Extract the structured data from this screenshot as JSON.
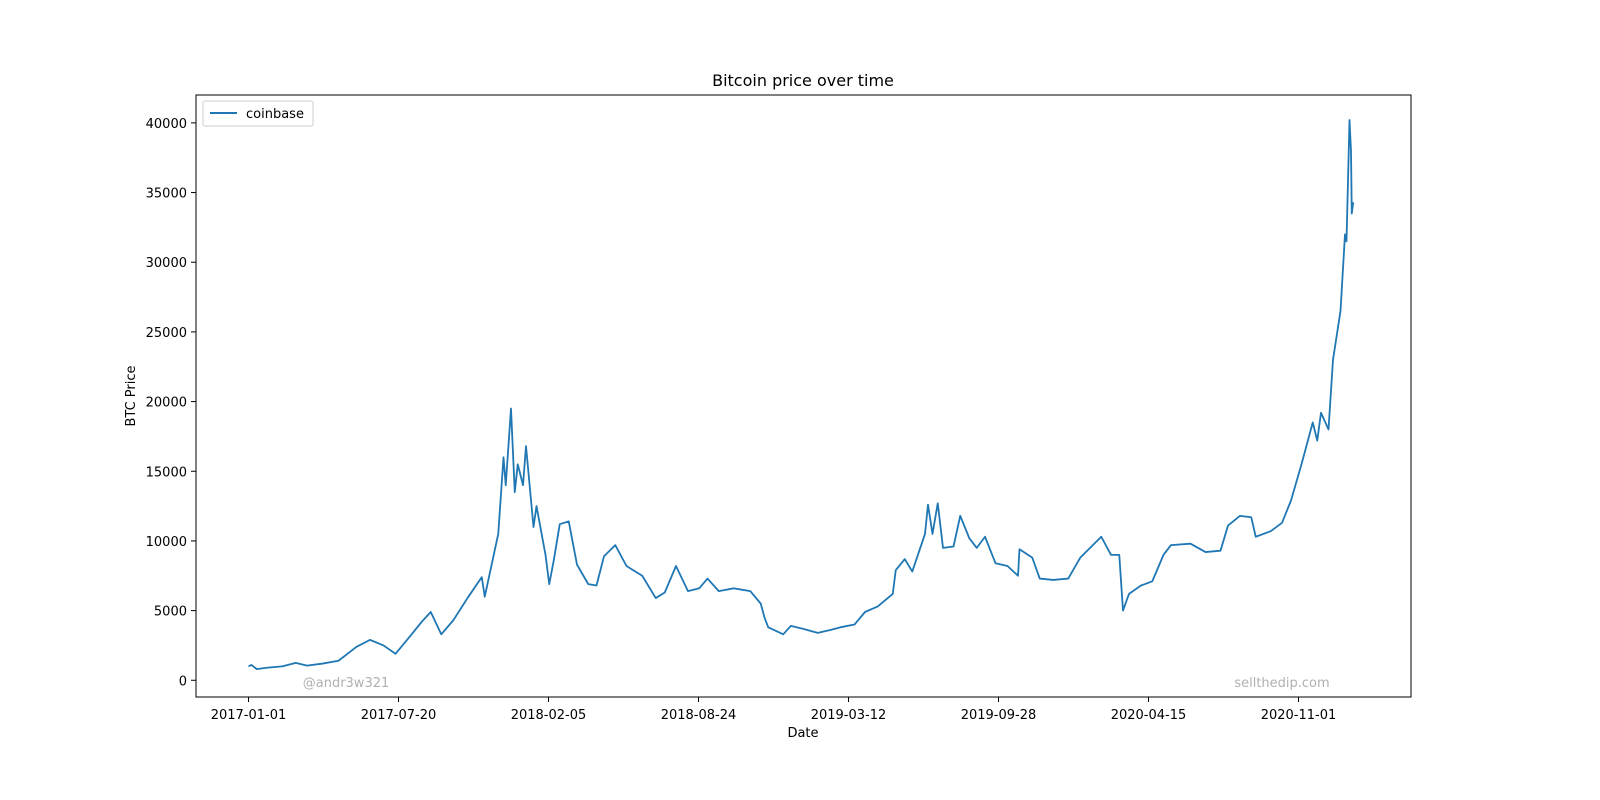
{
  "chart_data": {
    "type": "line",
    "title": "Bitcoin price over time",
    "xlabel": "Date",
    "ylabel": "BTC Price",
    "grid": false,
    "legend_position": "top-left",
    "ylim": [
      -1200,
      42000
    ],
    "xlim": [
      "2016-10-23",
      "2021-03-31"
    ],
    "y_ticks": [
      0,
      5000,
      10000,
      15000,
      20000,
      25000,
      30000,
      35000,
      40000
    ],
    "x_ticks": [
      "2017-01-01",
      "2017-07-20",
      "2018-02-05",
      "2018-08-24",
      "2019-03-12",
      "2019-09-28",
      "2020-04-15",
      "2020-11-01"
    ],
    "series": [
      {
        "name": "coinbase",
        "color": "#1f77b4",
        "points": [
          [
            "2017-01-01",
            1000
          ],
          [
            "2017-01-05",
            1100
          ],
          [
            "2017-01-12",
            800
          ],
          [
            "2017-01-25",
            900
          ],
          [
            "2017-02-15",
            1000
          ],
          [
            "2017-03-05",
            1250
          ],
          [
            "2017-03-20",
            1050
          ],
          [
            "2017-04-10",
            1200
          ],
          [
            "2017-05-01",
            1400
          ],
          [
            "2017-05-25",
            2400
          ],
          [
            "2017-06-12",
            2900
          ],
          [
            "2017-06-30",
            2500
          ],
          [
            "2017-07-16",
            1900
          ],
          [
            "2017-08-05",
            3200
          ],
          [
            "2017-08-20",
            4200
          ],
          [
            "2017-09-01",
            4900
          ],
          [
            "2017-09-15",
            3300
          ],
          [
            "2017-10-01",
            4300
          ],
          [
            "2017-10-20",
            5900
          ],
          [
            "2017-11-08",
            7400
          ],
          [
            "2017-11-12",
            6000
          ],
          [
            "2017-11-30",
            10500
          ],
          [
            "2017-12-07",
            16000
          ],
          [
            "2017-12-10",
            14000
          ],
          [
            "2017-12-17",
            19500
          ],
          [
            "2017-12-22",
            13500
          ],
          [
            "2017-12-26",
            15500
          ],
          [
            "2018-01-02",
            14000
          ],
          [
            "2018-01-06",
            16800
          ],
          [
            "2018-01-16",
            11000
          ],
          [
            "2018-01-20",
            12500
          ],
          [
            "2018-02-01",
            9000
          ],
          [
            "2018-02-06",
            6900
          ],
          [
            "2018-02-12",
            8600
          ],
          [
            "2018-02-20",
            11200
          ],
          [
            "2018-03-04",
            11400
          ],
          [
            "2018-03-15",
            8300
          ],
          [
            "2018-03-30",
            6900
          ],
          [
            "2018-04-10",
            6800
          ],
          [
            "2018-04-20",
            8900
          ],
          [
            "2018-05-05",
            9700
          ],
          [
            "2018-05-20",
            8200
          ],
          [
            "2018-06-10",
            7500
          ],
          [
            "2018-06-28",
            5900
          ],
          [
            "2018-07-10",
            6300
          ],
          [
            "2018-07-25",
            8200
          ],
          [
            "2018-08-10",
            6400
          ],
          [
            "2018-08-25",
            6600
          ],
          [
            "2018-09-05",
            7300
          ],
          [
            "2018-09-20",
            6400
          ],
          [
            "2018-10-10",
            6600
          ],
          [
            "2018-11-01",
            6400
          ],
          [
            "2018-11-15",
            5500
          ],
          [
            "2018-11-20",
            4500
          ],
          [
            "2018-11-25",
            3800
          ],
          [
            "2018-12-15",
            3300
          ],
          [
            "2018-12-25",
            3900
          ],
          [
            "2019-01-10",
            3700
          ],
          [
            "2019-01-30",
            3400
          ],
          [
            "2019-02-15",
            3600
          ],
          [
            "2019-03-01",
            3800
          ],
          [
            "2019-03-20",
            4000
          ],
          [
            "2019-04-03",
            4900
          ],
          [
            "2019-04-20",
            5300
          ],
          [
            "2019-05-10",
            6200
          ],
          [
            "2019-05-14",
            7900
          ],
          [
            "2019-05-26",
            8700
          ],
          [
            "2019-06-05",
            7800
          ],
          [
            "2019-06-22",
            10500
          ],
          [
            "2019-06-26",
            12600
          ],
          [
            "2019-07-02",
            10500
          ],
          [
            "2019-07-09",
            12700
          ],
          [
            "2019-07-16",
            9500
          ],
          [
            "2019-07-30",
            9600
          ],
          [
            "2019-08-08",
            11800
          ],
          [
            "2019-08-20",
            10200
          ],
          [
            "2019-08-30",
            9500
          ],
          [
            "2019-09-10",
            10300
          ],
          [
            "2019-09-24",
            8400
          ],
          [
            "2019-10-10",
            8200
          ],
          [
            "2019-10-24",
            7500
          ],
          [
            "2019-10-26",
            9400
          ],
          [
            "2019-11-12",
            8800
          ],
          [
            "2019-11-22",
            7300
          ],
          [
            "2019-12-10",
            7200
          ],
          [
            "2019-12-30",
            7300
          ],
          [
            "2020-01-15",
            8800
          ],
          [
            "2020-02-12",
            10300
          ],
          [
            "2020-02-25",
            9000
          ],
          [
            "2020-03-07",
            9000
          ],
          [
            "2020-03-12",
            5000
          ],
          [
            "2020-03-20",
            6200
          ],
          [
            "2020-04-05",
            6800
          ],
          [
            "2020-04-20",
            7100
          ],
          [
            "2020-05-05",
            9000
          ],
          [
            "2020-05-15",
            9700
          ],
          [
            "2020-06-10",
            9800
          ],
          [
            "2020-06-30",
            9200
          ],
          [
            "2020-07-20",
            9300
          ],
          [
            "2020-07-30",
            11100
          ],
          [
            "2020-08-15",
            11800
          ],
          [
            "2020-08-30",
            11700
          ],
          [
            "2020-09-05",
            10300
          ],
          [
            "2020-09-25",
            10700
          ],
          [
            "2020-10-10",
            11300
          ],
          [
            "2020-10-22",
            12900
          ],
          [
            "2020-11-05",
            15500
          ],
          [
            "2020-11-20",
            18500
          ],
          [
            "2020-11-26",
            17200
          ],
          [
            "2020-12-01",
            19200
          ],
          [
            "2020-12-11",
            18000
          ],
          [
            "2020-12-17",
            23000
          ],
          [
            "2020-12-27",
            26500
          ],
          [
            "2021-01-02",
            32000
          ],
          [
            "2021-01-04",
            31500
          ],
          [
            "2021-01-08",
            40200
          ],
          [
            "2021-01-10",
            38000
          ],
          [
            "2021-01-11",
            33500
          ],
          [
            "2021-01-13",
            34300
          ]
        ]
      }
    ]
  },
  "watermarks": {
    "left": "@andr3w321",
    "right": "sellthedip.com"
  }
}
